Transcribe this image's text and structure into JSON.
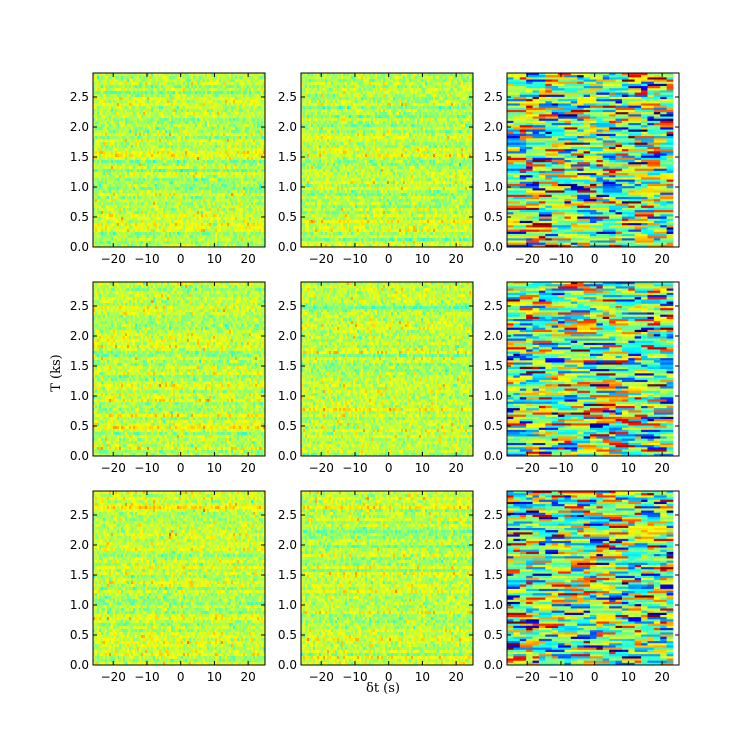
{
  "chart_data": {
    "type": "heatmap",
    "layout": {
      "rows": 3,
      "cols": 3
    },
    "xlabel": "δt (s)",
    "ylabel": "T (ks)",
    "xlim": [
      -26,
      25
    ],
    "ylim": [
      0,
      2.9
    ],
    "xticks": [
      -20,
      -10,
      0,
      10,
      20
    ],
    "xtick_labels": [
      "−20",
      "−10",
      "0",
      "10",
      "20"
    ],
    "yticks": [
      0.0,
      0.5,
      1.0,
      1.5,
      2.0,
      2.5
    ],
    "ytick_labels": [
      "0.0",
      "0.5",
      "1.0",
      "1.5",
      "2.0",
      "2.5"
    ],
    "colormap": "jet",
    "panel_styles": [
      "smooth",
      "smooth",
      "blocky",
      "smooth",
      "smooth",
      "blocky",
      "smooth",
      "smooth",
      "blocky"
    ],
    "colors": {
      "cmap_stops": [
        "#00007f",
        "#0000ff",
        "#0080ff",
        "#00ffff",
        "#7fff7f",
        "#ffff00",
        "#ff8000",
        "#ff0000",
        "#7f0000"
      ]
    }
  }
}
